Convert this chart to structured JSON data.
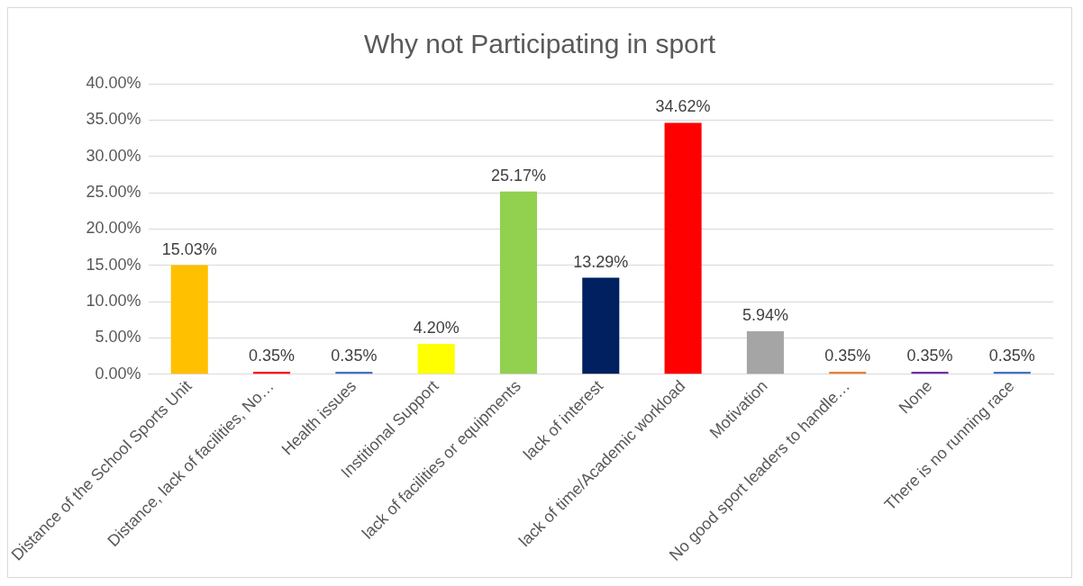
{
  "chart_data": {
    "type": "bar",
    "title": "Why not Participating in sport",
    "categories": [
      "Distance of the School Sports Unit",
      "Distance, lack of facilities, No…",
      "Health issues",
      "Institional Support",
      "lack of facilities or equipments",
      "lack of interest",
      "lack of time/Academic workload",
      "Motivation",
      "No good sport leaders to handle…",
      "None",
      "There is no running race"
    ],
    "values": [
      15.03,
      0.35,
      0.35,
      4.2,
      25.17,
      13.29,
      34.62,
      5.94,
      0.35,
      0.35,
      0.35
    ],
    "colors": [
      "#ffc000",
      "#ff0000",
      "#4472c4",
      "#ffff00",
      "#92d050",
      "#002060",
      "#ff0000",
      "#a5a5a5",
      "#ed7d31",
      "#7030a0",
      "#4472c4"
    ],
    "value_labels": [
      "15.03%",
      "0.35%",
      "0.35%",
      "4.20%",
      "25.17%",
      "13.29%",
      "34.62%",
      "5.94%",
      "0.35%",
      "0.35%",
      "0.35%"
    ],
    "ylim": [
      0,
      40
    ],
    "yticks": [
      {
        "value": 0,
        "label": "0.00%"
      },
      {
        "value": 5,
        "label": "5.00%"
      },
      {
        "value": 10,
        "label": "10.00%"
      },
      {
        "value": 15,
        "label": "15.00%"
      },
      {
        "value": 20,
        "label": "20.00%"
      },
      {
        "value": 25,
        "label": "25.00%"
      },
      {
        "value": 30,
        "label": "30.00%"
      },
      {
        "value": 35,
        "label": "35.00%"
      },
      {
        "value": 40,
        "label": "40.00%"
      }
    ],
    "grid": "y"
  }
}
